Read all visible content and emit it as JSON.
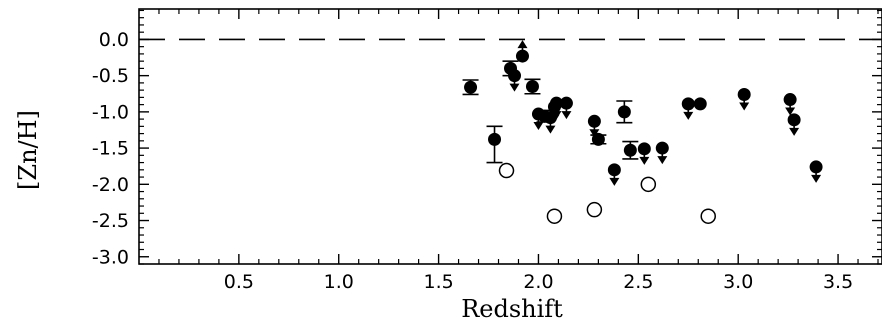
{
  "chart_data": {
    "type": "scatter",
    "title": "",
    "xlabel": "Redshift",
    "ylabel": "[Zn/H]",
    "xlim": [
      0.0,
      3.72
    ],
    "ylim": [
      -3.1,
      0.42
    ],
    "x_ticks": [
      "0.5",
      "1.0",
      "1.5",
      "2.0",
      "2.5",
      "3.0",
      "3.5"
    ],
    "y_ticks": [
      "0.0",
      "-0.5",
      "-1.0",
      "-1.5",
      "-2.0",
      "-2.5",
      "-3.0"
    ],
    "reference_line": {
      "y": 0.0,
      "style": "dashed"
    },
    "grid": false,
    "series": [
      {
        "marker": "filled-circle",
        "points": [
          {
            "x": 1.66,
            "y": -0.66,
            "err": 0.1
          },
          {
            "x": 1.78,
            "y": -1.38,
            "err_up": 0.18,
            "err_down": 0.32
          },
          {
            "x": 1.86,
            "y": -0.4,
            "err": 0.1
          },
          {
            "x": 1.88,
            "y": -0.5,
            "limit": "upper"
          },
          {
            "x": 1.92,
            "y": -0.23,
            "limit": "lower"
          },
          {
            "x": 1.97,
            "y": -0.65,
            "err": 0.1
          },
          {
            "x": 2.0,
            "y": -1.03,
            "limit": "upper"
          },
          {
            "x": 2.03,
            "y": -1.06,
            "err": 0.08
          },
          {
            "x": 2.06,
            "y": -1.08,
            "limit": "upper"
          },
          {
            "x": 2.08,
            "y": -0.93,
            "limit": "upper"
          },
          {
            "x": 2.09,
            "y": -0.88,
            "limit": "upper"
          },
          {
            "x": 2.14,
            "y": -0.88,
            "limit": "upper"
          },
          {
            "x": 2.28,
            "y": -1.13,
            "limit": "upper"
          },
          {
            "x": 2.3,
            "y": -1.38,
            "err": 0.06
          },
          {
            "x": 2.38,
            "y": -1.8,
            "limit": "upper"
          },
          {
            "x": 2.43,
            "y": -1.0,
            "err": 0.15
          },
          {
            "x": 2.46,
            "y": -1.53,
            "err": 0.12
          },
          {
            "x": 2.53,
            "y": -1.51,
            "limit": "upper"
          },
          {
            "x": 2.62,
            "y": -1.5,
            "limit": "upper"
          },
          {
            "x": 2.75,
            "y": -0.89,
            "limit": "upper"
          },
          {
            "x": 2.81,
            "y": -0.89
          },
          {
            "x": 3.03,
            "y": -0.76,
            "limit": "upper"
          },
          {
            "x": 3.26,
            "y": -0.83,
            "limit": "upper"
          },
          {
            "x": 3.28,
            "y": -1.11,
            "limit": "upper"
          },
          {
            "x": 3.39,
            "y": -1.76,
            "limit": "upper"
          }
        ]
      },
      {
        "marker": "open-circle",
        "points": [
          {
            "x": 1.84,
            "y": -1.81
          },
          {
            "x": 2.08,
            "y": -2.44
          },
          {
            "x": 2.28,
            "y": -2.35
          },
          {
            "x": 2.55,
            "y": -2.0
          },
          {
            "x": 2.85,
            "y": -2.44
          }
        ]
      }
    ]
  }
}
